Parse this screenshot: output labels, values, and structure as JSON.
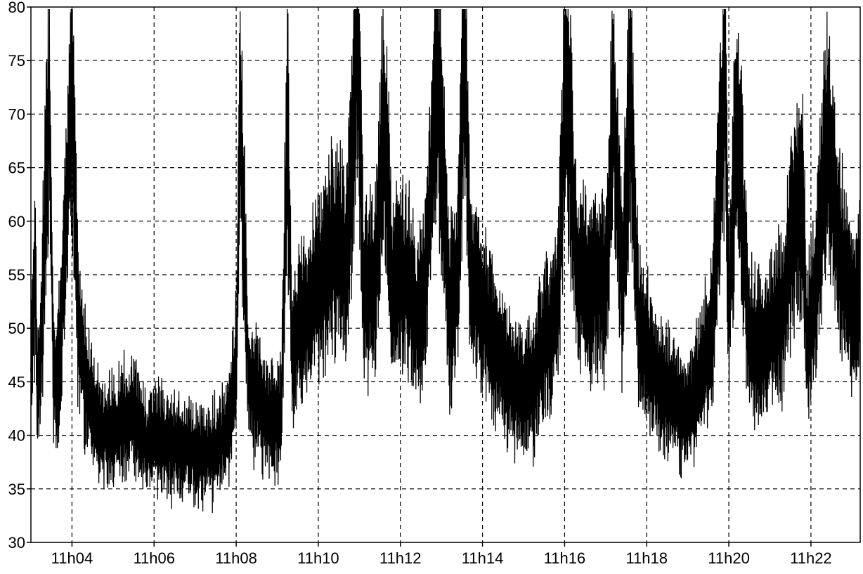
{
  "chart_data": {
    "type": "line",
    "title": "",
    "xlabel": "",
    "ylabel": "",
    "x_unit": "minutes",
    "xlim": [
      "11h03.0",
      "11h23.2"
    ],
    "ylim": [
      30,
      80
    ],
    "y_ticks": [
      30,
      35,
      40,
      45,
      50,
      55,
      60,
      65,
      70,
      75,
      80
    ],
    "y_tick_labels": [
      "30",
      "35",
      "40",
      "45",
      "50",
      "55",
      "60",
      "65",
      "70",
      "75",
      "80"
    ],
    "x_ticks": [
      "11h04",
      "11h06",
      "11h08",
      "11h10",
      "11h12",
      "11h14",
      "11h16",
      "11h18",
      "11h20",
      "11h22"
    ],
    "x_tick_labels": [
      "11h04",
      "11h06",
      "11h08",
      "11h10",
      "11h12",
      "11h14",
      "11h16",
      "11h18",
      "11h20",
      "11h22"
    ],
    "grid": true,
    "grid_style": "dashed",
    "legend": "none",
    "line_color": "#000000",
    "series": [
      {
        "x": [
          "11h03.00",
          "11h03.10",
          "11h03.15",
          "11h03.25",
          "11h03.35",
          "11h03.45",
          "11h03.55",
          "11h03.65",
          "11h03.80",
          "11h04.00",
          "11h04.15",
          "11h04.35",
          "11h04.60",
          "11h04.90",
          "11h05.20",
          "11h05.50",
          "11h05.80",
          "11h06.10",
          "11h06.40",
          "11h06.80",
          "11h07.20",
          "11h07.60",
          "11h07.80",
          "11h08.00",
          "11h08.10",
          "11h08.30",
          "11h08.60",
          "11h08.90",
          "11h09.10",
          "11h09.25",
          "11h09.35",
          "11h09.50",
          "11h09.80",
          "11h10.10",
          "11h10.40",
          "11h10.70",
          "11h10.85",
          "11h10.95",
          "11h11.10",
          "11h11.40",
          "11h11.60",
          "11h11.80",
          "11h12.00",
          "11h12.20",
          "11h12.40",
          "11h12.60",
          "11h12.90",
          "11h13.20",
          "11h13.40",
          "11h13.55",
          "11h13.70",
          "11h13.90",
          "11h14.10",
          "11h14.40",
          "11h14.80",
          "11h15.20",
          "11h15.50",
          "11h15.70",
          "11h15.85",
          "11h16.00",
          "11h16.10",
          "11h16.30",
          "11h16.60",
          "11h16.90",
          "11h17.00",
          "11h17.20",
          "11h17.40",
          "11h17.60",
          "11h17.80",
          "11h18.00",
          "11h18.30",
          "11h18.70",
          "11h19.00",
          "11h19.30",
          "11h19.60",
          "11h19.70",
          "11h19.90",
          "11h20.00",
          "11h20.20",
          "11h20.50",
          "11h20.80",
          "11h21.10",
          "11h21.30",
          "11h21.60",
          "11h21.80",
          "11h21.90",
          "11h22.10",
          "11h22.40",
          "11h22.70",
          "11h23.00",
          "11h23.20"
        ],
        "y": [
          46,
          57,
          44,
          48,
          62,
          71,
          45,
          45,
          55,
          73,
          50,
          45,
          41,
          40,
          41,
          42,
          39,
          40,
          39,
          39,
          38,
          39,
          41,
          46,
          71,
          45,
          43,
          41,
          42,
          69,
          48,
          50,
          52,
          55,
          58,
          56,
          68,
          80,
          53,
          55,
          70,
          54,
          55,
          54,
          51,
          53,
          75,
          51,
          55,
          79,
          55,
          53,
          51,
          47,
          45,
          44,
          49,
          50,
          53,
          72,
          70,
          55,
          54,
          55,
          53,
          71,
          53,
          73,
          50,
          48,
          45,
          43,
          42,
          45,
          50,
          58,
          75,
          52,
          70,
          49,
          48,
          50,
          51,
          60,
          63,
          48,
          53,
          68,
          57,
          52,
          53
        ]
      }
    ]
  }
}
